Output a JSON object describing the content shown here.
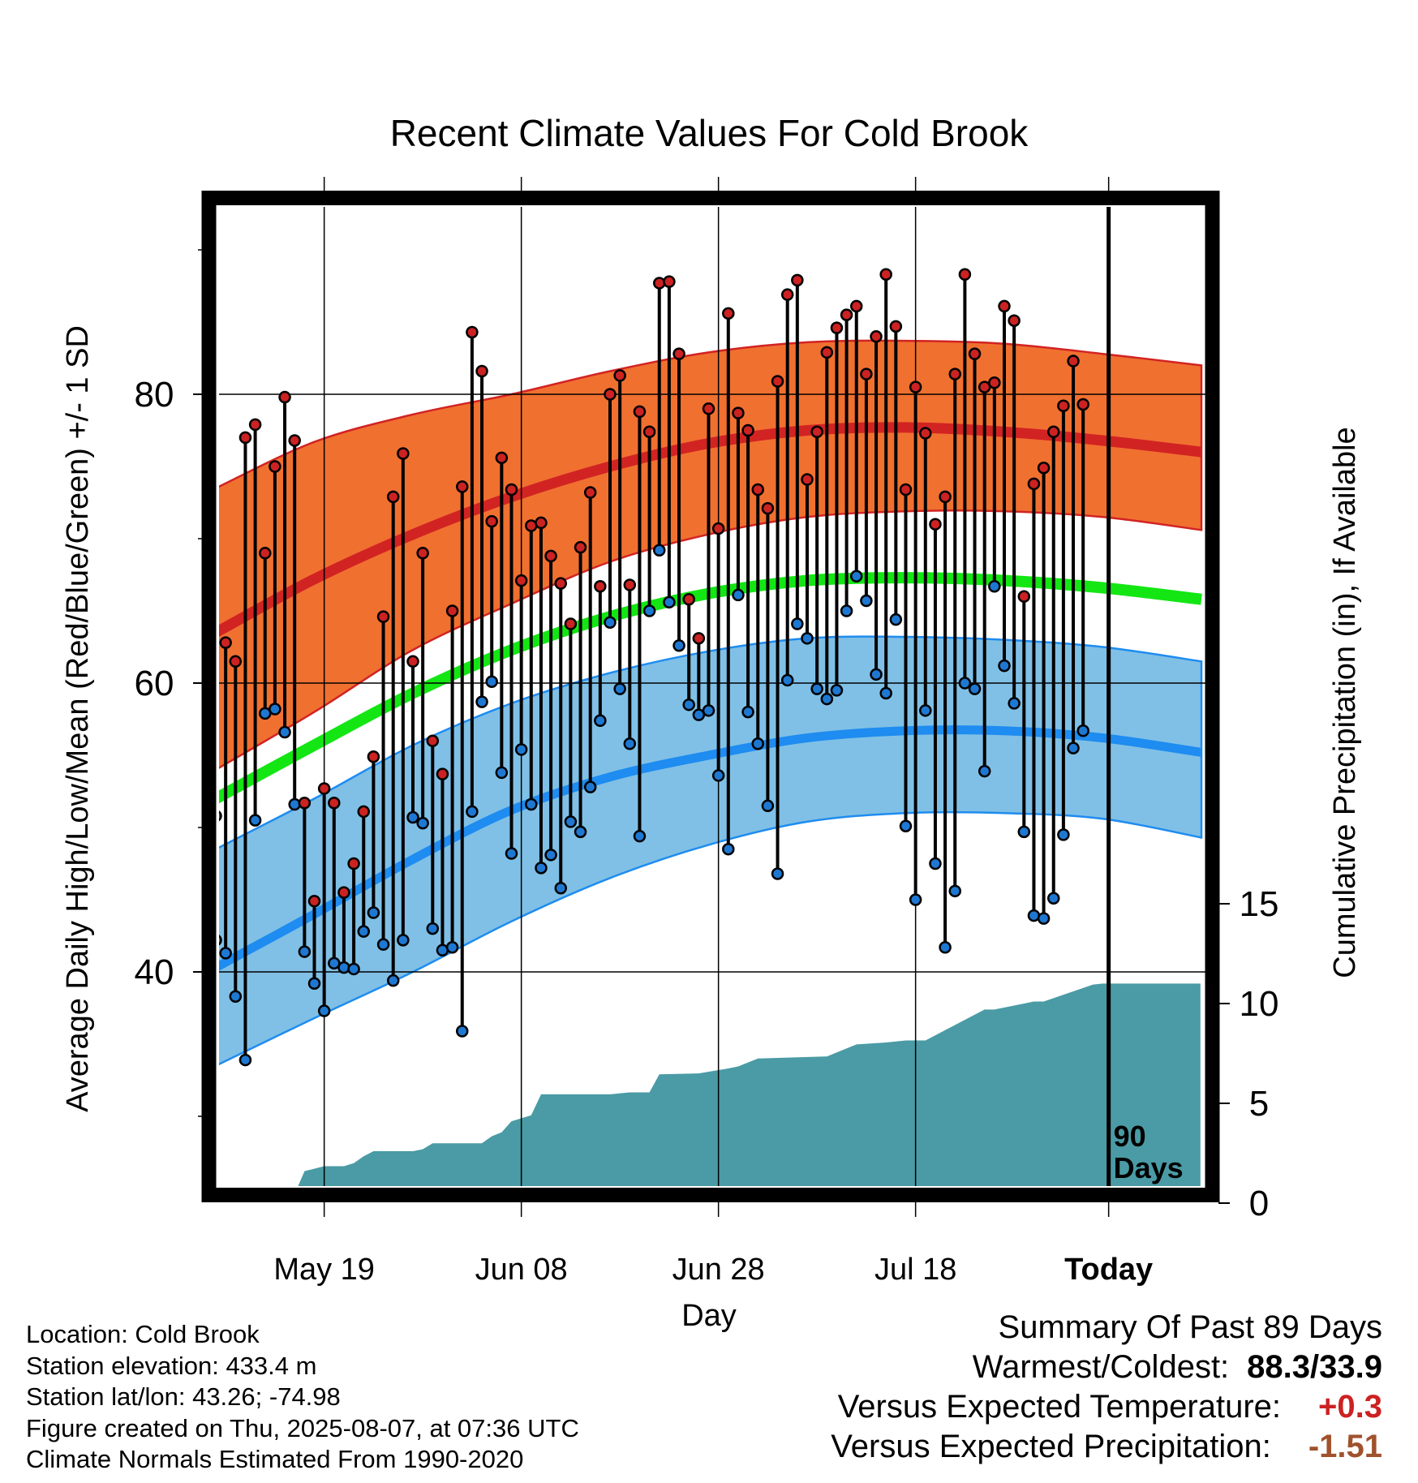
{
  "chart_data": {
    "type": "line",
    "title": "Recent Climate Values For Cold Brook",
    "xlabel": "Day",
    "ylabel": "Average Daily High/Low/Mean (Red/Blue/Green) +/- 1 SD",
    "y2label": "Cumulative Precipitation (in), If Available",
    "ylim": [
      24,
      92
    ],
    "y_ticks": [
      "40",
      "60",
      "80"
    ],
    "y2lim": [
      0,
      30
    ],
    "y2_ticks": [
      "0",
      "5",
      "10",
      "15"
    ],
    "x_ticks": [
      "May 19",
      "Jun 08",
      "Jun 28",
      "Jul 18",
      "Today"
    ],
    "x_tick_days": [
      11,
      31,
      51,
      71,
      91
    ],
    "xlim": [
      0,
      100
    ],
    "annotation": [
      "90",
      "Days"
    ],
    "grid": true,
    "colors": {
      "high_band": "#f07030",
      "high_mean": "#d22323",
      "low_band": "#80c0e6",
      "low_mean": "#1e8cf0",
      "mean_line": "#14e614",
      "precip": "#4a9ba5",
      "high_point": "#cc2222",
      "low_point": "#1e78d2"
    },
    "normals_days": [
      0,
      10,
      20,
      30,
      40,
      50,
      60,
      70,
      80,
      90,
      100
    ],
    "normal_high": [
      63.5,
      67.2,
      70.3,
      72.9,
      75.0,
      76.6,
      77.5,
      77.7,
      77.4,
      76.8,
      76.0
    ],
    "normal_high_upper": [
      73.5,
      76.7,
      78.6,
      80.0,
      81.6,
      82.9,
      83.6,
      83.7,
      83.5,
      82.8,
      82.0
    ],
    "normal_high_lower": [
      54.0,
      58.0,
      62.3,
      65.5,
      68.4,
      70.3,
      71.5,
      71.9,
      71.9,
      71.5,
      70.6
    ],
    "normal_mean": [
      52.0,
      55.7,
      59.3,
      62.3,
      64.6,
      66.2,
      67.1,
      67.3,
      67.1,
      66.6,
      65.8
    ],
    "normal_low": [
      40.3,
      44.0,
      47.8,
      51.2,
      53.5,
      55.0,
      56.2,
      56.7,
      56.7,
      56.2,
      55.2
    ],
    "normal_low_upper": [
      48.5,
      52.0,
      55.7,
      58.6,
      60.7,
      62.2,
      63.1,
      63.2,
      63.0,
      62.5,
      61.5
    ],
    "normal_low_lower": [
      33.5,
      36.8,
      40.0,
      43.5,
      46.5,
      48.8,
      50.4,
      51.0,
      51.0,
      50.6,
      49.3
    ],
    "precip_days": [
      0,
      7,
      8,
      9,
      11,
      13,
      14,
      15,
      16,
      20,
      21,
      22,
      27,
      28,
      29,
      30,
      32,
      33,
      40,
      42,
      44,
      45,
      49,
      52,
      53,
      55,
      62,
      65,
      68,
      70,
      72,
      78,
      79,
      83,
      84,
      89,
      90,
      99.9
    ],
    "precip_cum": [
      0.45,
      0.45,
      0.45,
      1.6,
      1.85,
      1.85,
      2.0,
      2.35,
      2.6,
      2.6,
      2.7,
      3.0,
      3.0,
      3.35,
      3.55,
      4.1,
      4.4,
      5.45,
      5.45,
      5.55,
      5.55,
      6.45,
      6.5,
      6.75,
      6.85,
      7.25,
      7.35,
      7.95,
      8.05,
      8.15,
      8.15,
      9.7,
      9.7,
      10.1,
      10.1,
      10.95,
      11.0,
      11.0
    ],
    "series": [
      {
        "name": "High",
        "values": [
          50.8,
          62.8,
          61.5,
          77.0,
          77.9,
          69.0,
          75.0,
          79.8,
          76.8,
          51.7,
          44.9,
          52.7,
          51.7,
          45.5,
          47.5,
          51.1,
          54.9,
          64.6,
          72.9,
          75.9,
          61.5,
          69.0,
          56.0,
          53.7,
          65.0,
          73.6,
          84.3,
          81.6,
          71.2,
          75.6,
          73.4,
          67.1,
          70.9,
          71.1,
          68.8,
          66.9,
          64.1,
          69.4,
          73.2,
          66.7,
          80.0,
          81.3,
          66.8,
          78.8,
          77.4,
          87.7,
          87.8,
          82.8,
          65.8,
          63.1,
          79.0,
          70.7,
          85.6,
          78.7,
          77.5,
          73.4,
          72.1,
          80.9,
          86.9,
          87.9,
          74.1,
          77.4,
          82.9,
          84.6,
          85.5,
          86.1,
          81.4,
          84.0,
          88.3,
          84.7,
          73.4,
          80.5,
          77.3,
          71.0,
          72.9,
          81.4,
          88.3,
          82.8,
          80.5,
          80.8,
          86.1,
          85.1,
          66.0,
          73.8,
          74.9,
          77.4,
          79.2,
          82.3,
          79.3
        ],
        "notes": "Daily observed high temperature (red points), one per day from day 0 to day 88"
      },
      {
        "name": "Low",
        "values": [
          42.2,
          41.3,
          38.3,
          33.9,
          50.5,
          57.9,
          58.2,
          56.6,
          51.6,
          41.4,
          39.2,
          37.3,
          40.6,
          40.3,
          40.2,
          42.8,
          44.1,
          41.9,
          39.4,
          42.2,
          50.7,
          50.3,
          43.0,
          41.5,
          41.7,
          35.9,
          51.1,
          58.7,
          60.1,
          53.8,
          48.2,
          55.4,
          51.6,
          47.2,
          48.1,
          45.8,
          50.4,
          49.7,
          52.8,
          57.4,
          64.2,
          59.6,
          55.8,
          49.4,
          65.0,
          69.2,
          65.6,
          62.6,
          58.5,
          57.8,
          58.1,
          53.6,
          48.5,
          66.1,
          58.0,
          55.8,
          51.5,
          46.8,
          60.2,
          64.1,
          63.1,
          59.6,
          58.9,
          59.5,
          65.0,
          67.4,
          65.7,
          60.6,
          59.3,
          64.4,
          50.1,
          45.0,
          58.1,
          47.5,
          41.7,
          45.6,
          60.0,
          59.6,
          53.9,
          66.7,
          61.2,
          58.6,
          49.7,
          43.9,
          43.7,
          45.1,
          49.5,
          55.5,
          56.7
        ],
        "notes": "Daily observed low temperature (blue points), one per day from day 0 to day 88"
      }
    ]
  },
  "footer": {
    "location": "Location: Cold Brook",
    "elevation": "Station elevation: 433.4 m",
    "latlon": "Station lat/lon: 43.26; -74.98",
    "created": "Figure created on Thu, 2025-08-07, at 07:36 UTC",
    "normals": "Climate Normals Estimated From 1990-2020"
  },
  "summary": {
    "title": "Summary Of Past 89 Days",
    "warm_cold_label": "Warmest/Coldest:",
    "warm_cold_value": "88.3/33.9",
    "temp_label": "Versus Expected Temperature:",
    "temp_value": "+0.3",
    "temp_color": "#cc2222",
    "precip_label": "Versus Expected Precipitation:",
    "precip_value": "-1.51",
    "precip_color": "#a0522d"
  }
}
